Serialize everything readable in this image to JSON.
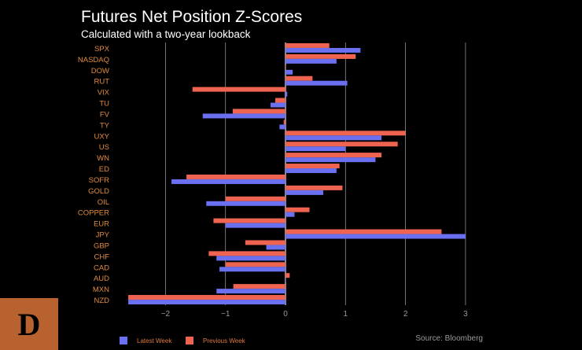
{
  "title": "Futures Net Position Z-Scores",
  "subtitle": "Calculated with a two-year lookback",
  "source": "Source: Bloomberg",
  "logo_letter": "D",
  "colors": {
    "background": "#000000",
    "latest": "#6a70f0",
    "previous": "#ef6450",
    "category_label": "#e08a3c",
    "tick_label": "#9a9a9a",
    "grid": "#cfcfcf",
    "logo_bg": "#b8622f"
  },
  "legend": [
    {
      "name": "Latest Week",
      "color": "#6a70f0"
    },
    {
      "name": "Previous Week",
      "color": "#ef6450"
    }
  ],
  "chart_data": {
    "type": "bar",
    "orientation": "horizontal",
    "title": "Futures Net Position Z-Scores",
    "subtitle": "Calculated with a two-year lookback",
    "categories": [
      "SPX",
      "NASDAQ",
      "DOW",
      "RUT",
      "VIX",
      "TU",
      "FV",
      "TY",
      "UXY",
      "US",
      "WN",
      "ED",
      "SOFR",
      "GOLD",
      "OIL",
      "COPPER",
      "EUR",
      "JPY",
      "GBP",
      "CHF",
      "CAD",
      "AUD",
      "MXN",
      "NZD"
    ],
    "series": [
      {
        "name": "Latest Week",
        "values": [
          1.25,
          0.85,
          0.12,
          1.03,
          0.03,
          -0.25,
          -1.38,
          -0.1,
          1.6,
          1.0,
          1.5,
          0.85,
          -1.9,
          0.63,
          -1.32,
          0.15,
          -1.0,
          3.0,
          -0.32,
          -1.15,
          -1.1,
          0.0,
          -1.15,
          -2.62
        ]
      },
      {
        "name": "Previous Week",
        "values": [
          0.73,
          1.17,
          0.0,
          0.45,
          -1.55,
          -0.17,
          -0.88,
          -0.03,
          2.0,
          1.87,
          1.6,
          0.9,
          -1.65,
          0.95,
          -1.0,
          0.4,
          -1.2,
          2.6,
          -0.67,
          -1.28,
          -1.0,
          0.07,
          -0.87,
          -2.62
        ]
      }
    ],
    "xlim": [
      -2.9,
      3.3
    ],
    "xticks": [
      -2,
      -1,
      0,
      1,
      2,
      3
    ],
    "tick_labels": [
      "−2",
      "−1",
      "0",
      "1",
      "2",
      "3"
    ],
    "grid": true,
    "legend_position": "bottom-left"
  }
}
